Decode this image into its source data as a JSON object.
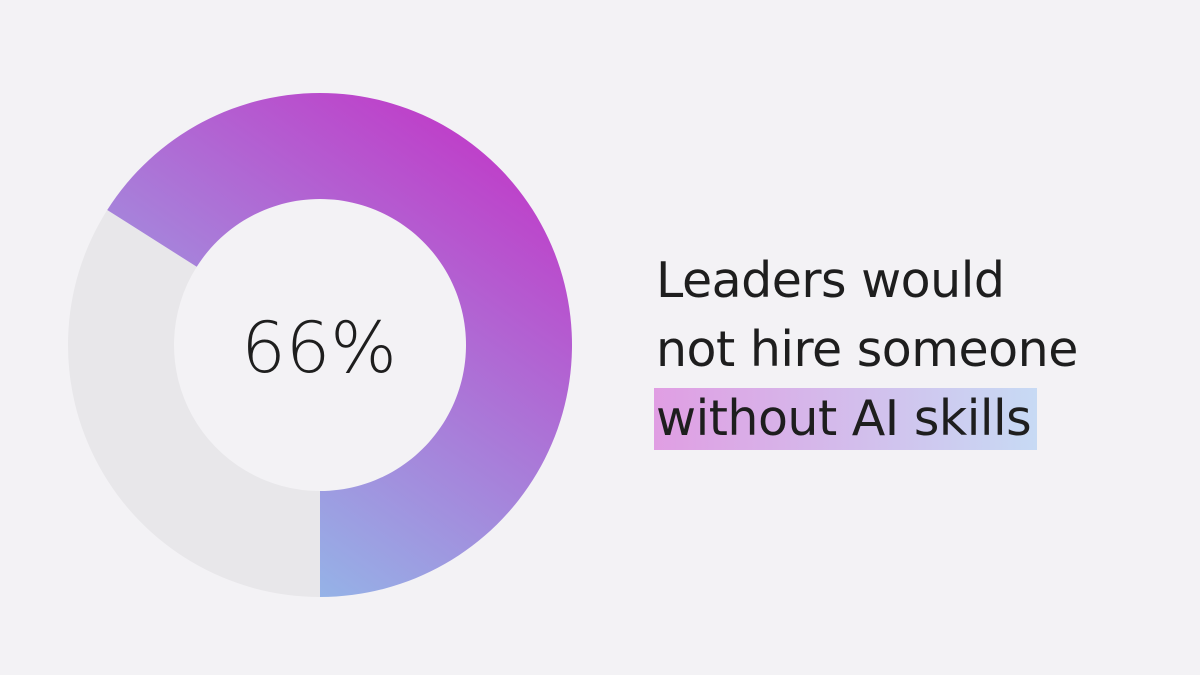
{
  "chart_data": {
    "type": "pie",
    "categories": [
      "",
      ""
    ],
    "values": [
      66,
      34
    ],
    "center_label": "66%",
    "colors": {
      "gradient_start": "#c03bc8",
      "gradient_end": "#8ec6ec",
      "remainder": "#e8e7ea"
    }
  },
  "caption": {
    "line1": "Leaders would",
    "line2": "not hire someone",
    "line3_highlighted": "without AI skills"
  },
  "colors": {
    "background": "#f3f2f5",
    "text": "#1e1e1e",
    "highlight_start": "#e09ee3",
    "highlight_end": "#c7daf4"
  }
}
